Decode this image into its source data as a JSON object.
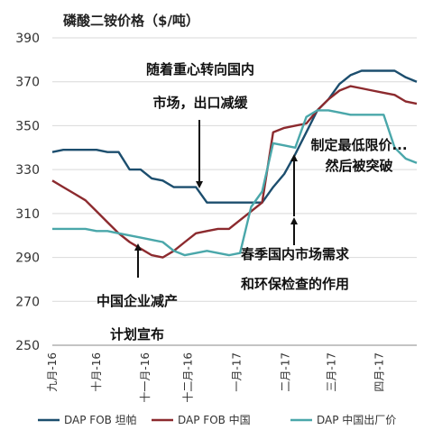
{
  "chart_data": {
    "type": "line",
    "title": "磷酸二铵价格（$/吨）",
    "ylim": [
      250,
      390
    ],
    "yticks": [
      250,
      270,
      290,
      310,
      330,
      350,
      370,
      390
    ],
    "xlabels": [
      "九月-16",
      "十月-16",
      "十一月-16",
      "十二月-16",
      "一月-17",
      "二月-17",
      "三月-17",
      "四月-17"
    ],
    "xlabel_index": [
      0,
      4,
      8.4,
      12.3,
      16.7,
      21.1,
      25.3,
      29.6
    ],
    "n_points": 34,
    "series": [
      {
        "name": "DAP FOB 坦帕",
        "color": "#1c4e6e",
        "values": [
          338,
          339,
          339,
          339,
          339,
          338,
          338,
          330,
          330,
          326,
          325,
          322,
          322,
          322,
          315,
          315,
          315,
          315,
          315,
          315,
          322,
          328,
          337,
          347,
          357,
          362,
          369,
          373,
          375,
          375,
          375,
          375,
          372,
          370
        ]
      },
      {
        "name": "DAP FOB 中国",
        "color": "#8c2a2e",
        "values": [
          325,
          322,
          319,
          316,
          311,
          306,
          301,
          297,
          294,
          291,
          290,
          293,
          297,
          301,
          302,
          303,
          303,
          307,
          311,
          315,
          347,
          349,
          350,
          351,
          357,
          362,
          366,
          368,
          367,
          366,
          365,
          364,
          361,
          360
        ]
      },
      {
        "name": "DAP 中国出厂价",
        "color": "#4aa7aa",
        "values": [
          303,
          303,
          303,
          303,
          302,
          302,
          301,
          300,
          299,
          298,
          297,
          293,
          291,
          292,
          293,
          292,
          291,
          292,
          313,
          320,
          342,
          341,
          340,
          354,
          357,
          357,
          356,
          355,
          355,
          355,
          355,
          340,
          335,
          333
        ]
      }
    ],
    "annotations": [
      {
        "id": "market-shift",
        "lines": [
          "随着重心转向国内",
          "市场，出口减缓"
        ]
      },
      {
        "id": "price-limit",
        "lines": [
          "制定最低限价...",
          "然后被突破"
        ]
      },
      {
        "id": "spring-demand",
        "lines": [
          "春季国内市场需求",
          "和环保检查的作用"
        ]
      },
      {
        "id": "production-cut",
        "lines": [
          "中国企业减产",
          "计划宣布"
        ]
      }
    ]
  }
}
